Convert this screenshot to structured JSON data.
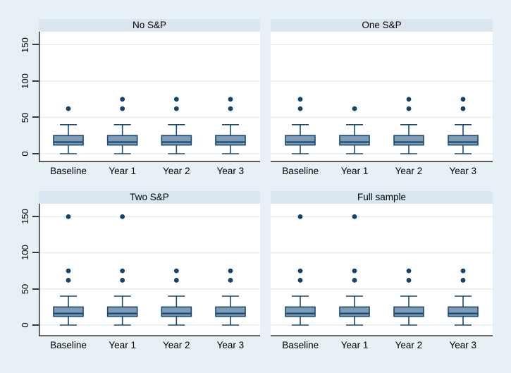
{
  "figure": {
    "background": "#e7f0f5",
    "panel_header_bg": "#d9e6ef",
    "plot_bg": "#ffffff",
    "gridline_color": "#dfeaf4",
    "axis_color": "#3a3a3a",
    "box_fill": "#7e9cb5",
    "box_stroke": "#1b4a71",
    "outlier_color": "#17426a"
  },
  "chart_data": {
    "type": "box",
    "title": "",
    "layout": "2x2 small-multiple panels, shared y axis on left column, light-blue Stata-style theme, horizontal gridlines on",
    "categories": [
      "Baseline",
      "Year 1",
      "Year 2",
      "Year 3"
    ],
    "y_ticks": [
      0,
      50,
      100,
      150
    ],
    "y_tick_labels": [
      "0",
      "50",
      "100",
      "150"
    ],
    "ylim": [
      -12,
      168
    ],
    "panels": [
      {
        "title": "No S&P",
        "boxes": [
          {
            "category": "Baseline",
            "whislo": 0,
            "q1": 12,
            "med": 16,
            "q3": 25,
            "whishi": 40,
            "outliers": [
              62
            ]
          },
          {
            "category": "Year 1",
            "whislo": 0,
            "q1": 12,
            "med": 16,
            "q3": 25,
            "whishi": 40,
            "outliers": [
              62,
              75
            ]
          },
          {
            "category": "Year 2",
            "whislo": 0,
            "q1": 12,
            "med": 16,
            "q3": 25,
            "whishi": 40,
            "outliers": [
              62,
              75
            ]
          },
          {
            "category": "Year 3",
            "whislo": 0,
            "q1": 12,
            "med": 16,
            "q3": 25,
            "whishi": 40,
            "outliers": [
              62,
              75
            ]
          }
        ]
      },
      {
        "title": "One S&P",
        "boxes": [
          {
            "category": "Baseline",
            "whislo": 0,
            "q1": 12,
            "med": 16,
            "q3": 25,
            "whishi": 40,
            "outliers": [
              62,
              75
            ]
          },
          {
            "category": "Year 1",
            "whislo": 0,
            "q1": 12,
            "med": 16,
            "q3": 25,
            "whishi": 40,
            "outliers": [
              62
            ]
          },
          {
            "category": "Year 2",
            "whislo": 0,
            "q1": 12,
            "med": 16,
            "q3": 25,
            "whishi": 40,
            "outliers": [
              62,
              75
            ]
          },
          {
            "category": "Year 3",
            "whislo": 0,
            "q1": 12,
            "med": 16,
            "q3": 25,
            "whishi": 40,
            "outliers": [
              62,
              75
            ]
          }
        ]
      },
      {
        "title": "Two S&P",
        "boxes": [
          {
            "category": "Baseline",
            "whislo": 0,
            "q1": 12,
            "med": 16,
            "q3": 25,
            "whishi": 40,
            "outliers": [
              62,
              75,
              150
            ]
          },
          {
            "category": "Year 1",
            "whislo": 0,
            "q1": 12,
            "med": 16,
            "q3": 25,
            "whishi": 40,
            "outliers": [
              62,
              75,
              150
            ]
          },
          {
            "category": "Year 2",
            "whislo": 0,
            "q1": 12,
            "med": 16,
            "q3": 25,
            "whishi": 40,
            "outliers": [
              62,
              75
            ]
          },
          {
            "category": "Year 3",
            "whislo": 0,
            "q1": 12,
            "med": 16,
            "q3": 25,
            "whishi": 40,
            "outliers": [
              62,
              75
            ]
          }
        ]
      },
      {
        "title": "Full sample",
        "boxes": [
          {
            "category": "Baseline",
            "whislo": 0,
            "q1": 12,
            "med": 16,
            "q3": 25,
            "whishi": 40,
            "outliers": [
              62,
              75,
              150
            ]
          },
          {
            "category": "Year 1",
            "whislo": 0,
            "q1": 12,
            "med": 16,
            "q3": 25,
            "whishi": 40,
            "outliers": [
              62,
              75,
              150
            ]
          },
          {
            "category": "Year 2",
            "whislo": 0,
            "q1": 12,
            "med": 16,
            "q3": 25,
            "whishi": 40,
            "outliers": [
              62,
              75
            ]
          },
          {
            "category": "Year 3",
            "whislo": 0,
            "q1": 12,
            "med": 16,
            "q3": 25,
            "whishi": 40,
            "outliers": [
              62,
              75
            ]
          }
        ]
      }
    ]
  }
}
